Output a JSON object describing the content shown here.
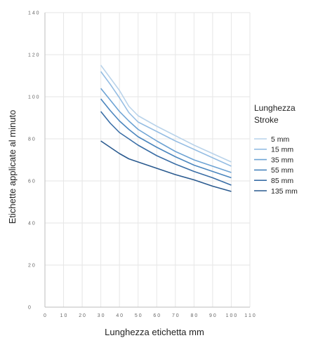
{
  "chart_data": {
    "type": "line",
    "xlabel": "Lunghezza etichetta mm",
    "ylabel": "Etichette applicate al minuto",
    "xlim": [
      0,
      110
    ],
    "ylim": [
      0,
      140
    ],
    "x_ticks": [
      0,
      10,
      20,
      30,
      40,
      50,
      60,
      70,
      80,
      90,
      100,
      110
    ],
    "y_ticks": [
      0,
      20,
      40,
      60,
      80,
      100,
      120,
      140
    ],
    "grid": true,
    "legend": {
      "title": "Lunghezza Stroke",
      "title_lines": [
        "Lunghezza",
        "Stroke"
      ],
      "placement": "right"
    },
    "x": [
      30,
      35,
      40,
      45,
      50,
      60,
      70,
      80,
      90,
      100
    ],
    "series": [
      {
        "name": "5 mm",
        "color": "#b9d3ea",
        "values": [
          115,
          109,
          103,
          95.5,
          91,
          86,
          81.5,
          77,
          73,
          69
        ]
      },
      {
        "name": "15 mm",
        "color": "#95bde3",
        "values": [
          112,
          106,
          99.5,
          92.5,
          88,
          83.5,
          79,
          75,
          71,
          67
        ]
      },
      {
        "name": "35 mm",
        "color": "#6da3d4",
        "values": [
          104,
          98.5,
          93,
          88.5,
          84.5,
          79,
          74,
          70,
          67,
          64
        ]
      },
      {
        "name": "55 mm",
        "color": "#4b86be",
        "values": [
          99,
          93.5,
          88.5,
          84.5,
          81,
          76,
          71.5,
          67.5,
          64.5,
          61.5
        ]
      },
      {
        "name": "85 mm",
        "color": "#3a6ea6",
        "values": [
          93,
          87.5,
          83,
          80,
          77,
          72,
          68,
          64.5,
          61.5,
          58
        ]
      },
      {
        "name": "135 mm",
        "color": "#2a5a8f",
        "values": [
          79,
          76,
          73,
          70.5,
          69,
          66,
          63,
          60.5,
          57.5,
          55
        ]
      }
    ]
  }
}
